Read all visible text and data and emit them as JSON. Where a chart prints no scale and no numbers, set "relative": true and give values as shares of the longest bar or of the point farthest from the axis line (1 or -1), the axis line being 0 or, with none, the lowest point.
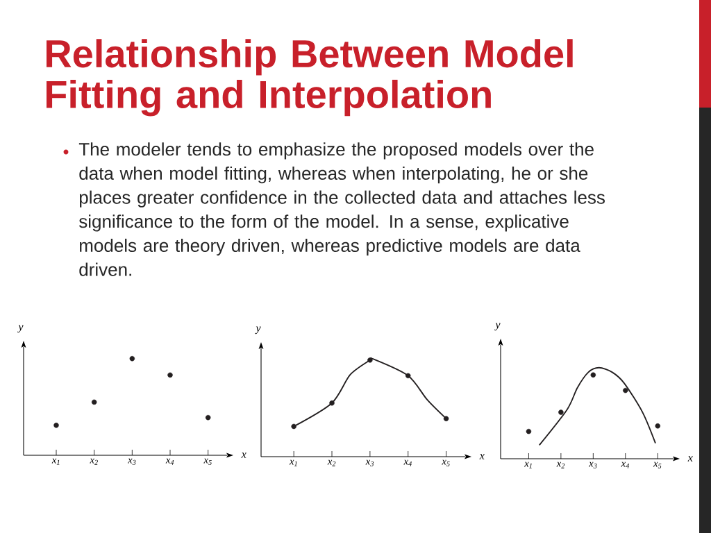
{
  "chart_data": [
    {
      "type": "scatter",
      "title": "Relationship Between Model Fitting and Interpolation",
      "annotations": [
        "The modeler tends to emphasize the proposed models over the data when model fitting, whereas when interpolating, he or she places greater confidence in the collected data and attaches less significance to the form of the model. In a sense, explicative models are theory driven, whereas predictive models are data driven."
      ],
      "xlabel": "x",
      "ylabel": "y",
      "relative": true,
      "tick_labels": "x",
      "marker": "circle",
      "x": [
        1,
        2,
        3,
        4,
        5
      ],
      "xlim": [
        0.14,
        5.5
      ],
      "xticks": [
        {
          "value": 1,
          "label": "x$_{1}$"
        },
        {
          "value": 2,
          "label": "x$_{2}$"
        },
        {
          "value": 3,
          "label": "x$_{3}$"
        },
        {
          "value": 4,
          "label": "x$_{4}$"
        },
        {
          "value": 5,
          "label": "x$_{5}$"
        }
      ],
      "series": [
        {
          "color": "#231f20",
          "values": [
            0.31,
            0.55,
            1,
            0.83,
            0.39
          ]
        }
      ]
    },
    {
      "type": "scatter",
      "xlabel": "x",
      "ylabel": "y",
      "relative": true,
      "tick_labels": "x",
      "marker": "circle",
      "x": [
        1,
        2,
        3,
        4,
        5
      ],
      "xlim": [
        0.14,
        5.5
      ],
      "xticks": [
        {
          "value": 1,
          "label": "x$_{1}$"
        },
        {
          "value": 2,
          "label": "x$_{2}$"
        },
        {
          "value": 3,
          "label": "x$_{3}$"
        },
        {
          "value": 4,
          "label": "x$_{4}$"
        },
        {
          "value": 5,
          "label": "x$_{5}$"
        }
      ],
      "series": [
        {
          "color": "#231f20",
          "values": [
            0.31,
            0.55,
            0.99,
            0.83,
            0.39
          ]
        },
        {
          "type": "line",
          "marker": "none",
          "color": "#231f20",
          "x": [
            1,
            2,
            2.48,
            3,
            3.09,
            4,
            4.51,
            5
          ],
          "values": [
            0.31,
            0.55,
            0.84,
            0.99,
            1,
            0.83,
            0.58,
            0.39
          ]
        }
      ]
    },
    {
      "type": "scatter",
      "xlabel": "x",
      "ylabel": "y",
      "relative": true,
      "tick_labels": "x",
      "marker": "circle",
      "x": [
        1,
        2,
        3,
        4,
        5
      ],
      "xlim": [
        0.13,
        5.49
      ],
      "xticks": [
        {
          "value": 1,
          "label": "x$_{1}$"
        },
        {
          "value": 2,
          "label": "x$_{2}$"
        },
        {
          "value": 3,
          "label": "x$_{3}$"
        },
        {
          "value": 4,
          "label": "x$_{4}$"
        },
        {
          "value": 5,
          "label": "x$_{5}$"
        }
      ],
      "series": [
        {
          "color": "#231f20",
          "values": [
            0.3,
            0.51,
            0.92,
            0.75,
            0.36
          ]
        },
        {
          "type": "line",
          "marker": "none",
          "color": "#231f20",
          "x": [
            1.33,
            2.19,
            2.51,
            2.85,
            3.18,
            3.59,
            3.96,
            4.53,
            4.93
          ],
          "values": [
            0.15,
            0.54,
            0.78,
            0.95,
            1,
            0.95,
            0.83,
            0.51,
            0.17
          ]
        }
      ]
    }
  ]
}
